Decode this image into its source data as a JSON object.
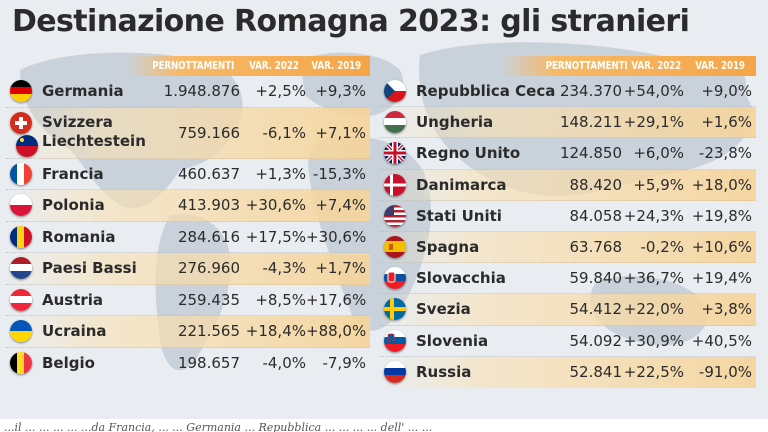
{
  "title": "Destinazione Romagna 2023: gli stranieri",
  "headers": {
    "pernottamenti": "PERNOTTAMENTI",
    "var2022": "VAR. 2022",
    "var2019": "VAR. 2019"
  },
  "left_rows": [
    {
      "country": "Germania",
      "pernottamenti": "1.948.876",
      "var2022": "+2,5%",
      "var2019": "+9,3%"
    },
    {
      "country": "Svizzera Liechtestein",
      "pernottamenti": "759.166",
      "var2022": "-6,1%",
      "var2019": "+7,1%"
    },
    {
      "country": "Francia",
      "pernottamenti": "460.637",
      "var2022": "+1,3%",
      "var2019": "-15,3%"
    },
    {
      "country": "Polonia",
      "pernottamenti": "413.903",
      "var2022": "+30,6%",
      "var2019": "+7,4%"
    },
    {
      "country": "Romania",
      "pernottamenti": "284.616",
      "var2022": "+17,5%",
      "var2019": "+30,6%"
    },
    {
      "country": "Paesi Bassi",
      "pernottamenti": "276.960",
      "var2022": "-4,3%",
      "var2019": "+1,7%"
    },
    {
      "country": "Austria",
      "pernottamenti": "259.435",
      "var2022": "+8,5%",
      "var2019": "+17,6%"
    },
    {
      "country": "Ucraina",
      "pernottamenti": "221.565",
      "var2022": "+18,4%",
      "var2019": "+88,0%"
    },
    {
      "country": "Belgio",
      "pernottamenti": "198.657",
      "var2022": "-4,0%",
      "var2019": "-7,9%"
    }
  ],
  "right_rows": [
    {
      "country": "Repubblica Ceca",
      "pernottamenti": "234.370",
      "var2022": "+54,0%",
      "var2019": "+9,0%"
    },
    {
      "country": "Ungheria",
      "pernottamenti": "148.211",
      "var2022": "+29,1%",
      "var2019": "+1,6%"
    },
    {
      "country": "Regno Unito",
      "pernottamenti": "124.850",
      "var2022": "+6,0%",
      "var2019": "-23,8%"
    },
    {
      "country": "Danimarca",
      "pernottamenti": "88.420",
      "var2022": "+5,9%",
      "var2019": "+18,0%"
    },
    {
      "country": "Stati Uniti",
      "pernottamenti": "84.058",
      "var2022": "+24,3%",
      "var2019": "+19,8%"
    },
    {
      "country": "Spagna",
      "pernottamenti": "63.768",
      "var2022": "-0,2%",
      "var2019": "+10,6%"
    },
    {
      "country": "Slovacchia",
      "pernottamenti": "59.840",
      "var2022": "+36,7%",
      "var2019": "+19,4%"
    },
    {
      "country": "Svezia",
      "pernottamenti": "54.412",
      "var2022": "+22,0%",
      "var2019": "+3,8%"
    },
    {
      "country": "Slovenia",
      "pernottamenti": "54.092",
      "var2022": "+30,9%",
      "var2019": "+40,5%"
    },
    {
      "country": "Russia",
      "pernottamenti": "52.841",
      "var2022": "+22,5%",
      "var2019": "-91,0%"
    }
  ],
  "footer_fragment": "...il ... ... ... ... ...da Francia, ... ... Germania ... Repubblica ... ... ... ... dell' ... ..."
}
